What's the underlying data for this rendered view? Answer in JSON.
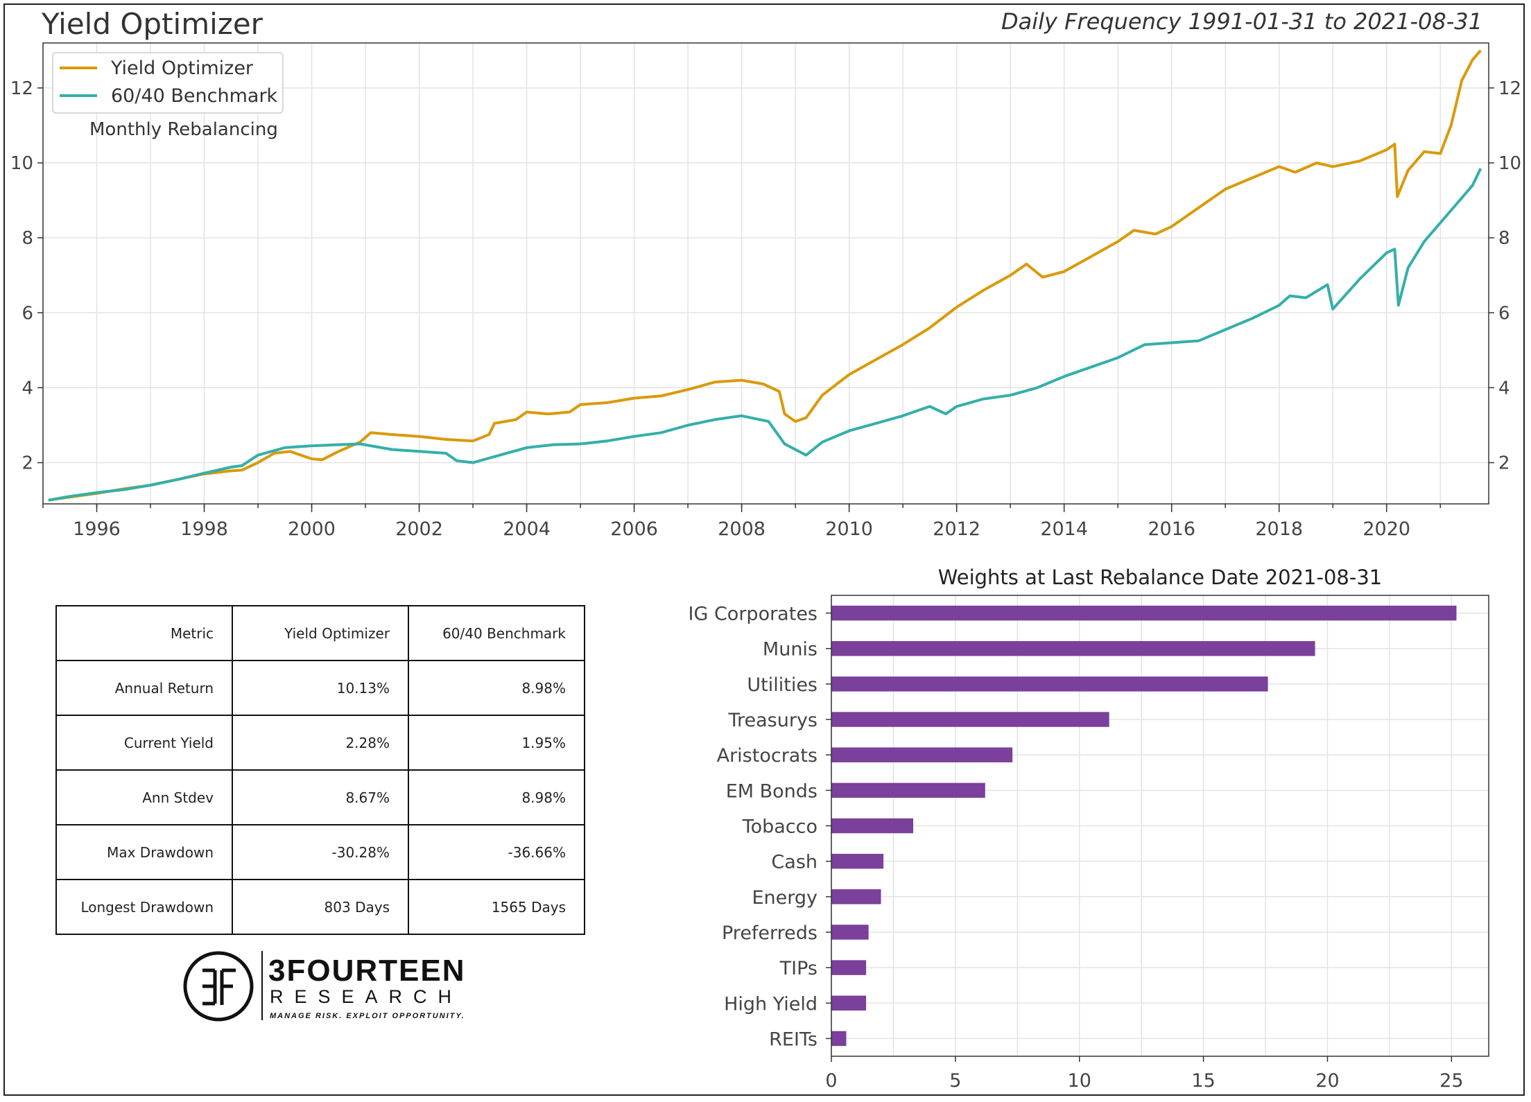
{
  "header": {
    "title": "Yield Optimizer",
    "subtitle": "Daily Frequency 1991-01-31 to 2021-08-31"
  },
  "colors": {
    "yield_optimizer": "#D99A0B",
    "benchmark": "#34AFAA",
    "bars": "#7B3F9C",
    "grid": "#e3e3e3"
  },
  "chart_data": [
    {
      "type": "line",
      "title": "",
      "legend": {
        "position": "top-left",
        "entries": [
          "Yield Optimizer",
          "60/40 Benchmark"
        ],
        "note": "Monthly Rebalancing"
      },
      "xlim": [
        1995.0,
        2021.9
      ],
      "ylim": [
        0.9,
        13.2
      ],
      "x_ticks": [
        1996,
        1998,
        2000,
        2002,
        2004,
        2006,
        2008,
        2010,
        2012,
        2014,
        2016,
        2018,
        2020
      ],
      "y_ticks": [
        2,
        4,
        6,
        8,
        10,
        12
      ],
      "grid": true,
      "series": [
        {
          "name": "Yield Optimizer",
          "points": [
            [
              1995.1,
              1.0
            ],
            [
              1995.5,
              1.08
            ],
            [
              1996.0,
              1.18
            ],
            [
              1996.5,
              1.3
            ],
            [
              1997.0,
              1.4
            ],
            [
              1997.5,
              1.55
            ],
            [
              1998.0,
              1.7
            ],
            [
              1998.5,
              1.78
            ],
            [
              1998.7,
              1.8
            ],
            [
              1999.0,
              2.0
            ],
            [
              1999.3,
              2.25
            ],
            [
              1999.6,
              2.3
            ],
            [
              2000.0,
              2.1
            ],
            [
              2000.2,
              2.08
            ],
            [
              2000.5,
              2.3
            ],
            [
              2000.9,
              2.55
            ],
            [
              2001.1,
              2.8
            ],
            [
              2001.5,
              2.75
            ],
            [
              2002.0,
              2.7
            ],
            [
              2002.5,
              2.62
            ],
            [
              2003.0,
              2.58
            ],
            [
              2003.3,
              2.75
            ],
            [
              2003.4,
              3.05
            ],
            [
              2003.8,
              3.15
            ],
            [
              2004.0,
              3.35
            ],
            [
              2004.4,
              3.3
            ],
            [
              2004.8,
              3.35
            ],
            [
              2005.0,
              3.55
            ],
            [
              2005.5,
              3.6
            ],
            [
              2006.0,
              3.72
            ],
            [
              2006.5,
              3.78
            ],
            [
              2007.0,
              3.95
            ],
            [
              2007.5,
              4.15
            ],
            [
              2008.0,
              4.2
            ],
            [
              2008.4,
              4.1
            ],
            [
              2008.7,
              3.9
            ],
            [
              2008.8,
              3.3
            ],
            [
              2009.0,
              3.1
            ],
            [
              2009.2,
              3.2
            ],
            [
              2009.5,
              3.8
            ],
            [
              2010.0,
              4.35
            ],
            [
              2010.5,
              4.75
            ],
            [
              2011.0,
              5.15
            ],
            [
              2011.5,
              5.6
            ],
            [
              2012.0,
              6.15
            ],
            [
              2012.5,
              6.6
            ],
            [
              2013.0,
              7.0
            ],
            [
              2013.3,
              7.3
            ],
            [
              2013.6,
              6.95
            ],
            [
              2014.0,
              7.1
            ],
            [
              2014.5,
              7.5
            ],
            [
              2015.0,
              7.9
            ],
            [
              2015.3,
              8.2
            ],
            [
              2015.7,
              8.1
            ],
            [
              2016.0,
              8.3
            ],
            [
              2016.5,
              8.8
            ],
            [
              2017.0,
              9.3
            ],
            [
              2017.5,
              9.6
            ],
            [
              2018.0,
              9.9
            ],
            [
              2018.3,
              9.75
            ],
            [
              2018.7,
              10.0
            ],
            [
              2019.0,
              9.9
            ],
            [
              2019.5,
              10.05
            ],
            [
              2020.0,
              10.35
            ],
            [
              2020.15,
              10.5
            ],
            [
              2020.2,
              9.1
            ],
            [
              2020.4,
              9.8
            ],
            [
              2020.7,
              10.3
            ],
            [
              2021.0,
              10.25
            ],
            [
              2021.2,
              11.0
            ],
            [
              2021.4,
              12.2
            ],
            [
              2021.6,
              12.75
            ],
            [
              2021.75,
              13.0
            ]
          ]
        },
        {
          "name": "60/40 Benchmark",
          "points": [
            [
              1995.1,
              1.0
            ],
            [
              1995.5,
              1.1
            ],
            [
              1996.0,
              1.2
            ],
            [
              1996.5,
              1.28
            ],
            [
              1997.0,
              1.4
            ],
            [
              1997.5,
              1.55
            ],
            [
              1998.0,
              1.72
            ],
            [
              1998.5,
              1.88
            ],
            [
              1998.7,
              1.92
            ],
            [
              1999.0,
              2.2
            ],
            [
              1999.5,
              2.4
            ],
            [
              2000.0,
              2.45
            ],
            [
              2000.5,
              2.48
            ],
            [
              2000.9,
              2.5
            ],
            [
              2001.5,
              2.35
            ],
            [
              2002.0,
              2.3
            ],
            [
              2002.5,
              2.25
            ],
            [
              2002.7,
              2.05
            ],
            [
              2003.0,
              2.0
            ],
            [
              2003.5,
              2.2
            ],
            [
              2004.0,
              2.4
            ],
            [
              2004.5,
              2.48
            ],
            [
              2005.0,
              2.5
            ],
            [
              2005.5,
              2.58
            ],
            [
              2006.0,
              2.7
            ],
            [
              2006.5,
              2.8
            ],
            [
              2007.0,
              3.0
            ],
            [
              2007.5,
              3.15
            ],
            [
              2008.0,
              3.25
            ],
            [
              2008.5,
              3.1
            ],
            [
              2008.8,
              2.5
            ],
            [
              2009.0,
              2.35
            ],
            [
              2009.2,
              2.2
            ],
            [
              2009.5,
              2.55
            ],
            [
              2010.0,
              2.85
            ],
            [
              2010.5,
              3.05
            ],
            [
              2011.0,
              3.25
            ],
            [
              2011.5,
              3.5
            ],
            [
              2011.8,
              3.3
            ],
            [
              2012.0,
              3.5
            ],
            [
              2012.5,
              3.7
            ],
            [
              2013.0,
              3.8
            ],
            [
              2013.5,
              4.0
            ],
            [
              2014.0,
              4.3
            ],
            [
              2014.5,
              4.55
            ],
            [
              2015.0,
              4.8
            ],
            [
              2015.5,
              5.15
            ],
            [
              2016.0,
              5.2
            ],
            [
              2016.5,
              5.25
            ],
            [
              2017.0,
              5.55
            ],
            [
              2017.5,
              5.85
            ],
            [
              2018.0,
              6.2
            ],
            [
              2018.2,
              6.45
            ],
            [
              2018.5,
              6.4
            ],
            [
              2018.9,
              6.75
            ],
            [
              2019.0,
              6.1
            ],
            [
              2019.5,
              6.9
            ],
            [
              2020.0,
              7.6
            ],
            [
              2020.15,
              7.7
            ],
            [
              2020.22,
              6.2
            ],
            [
              2020.4,
              7.2
            ],
            [
              2020.7,
              7.9
            ],
            [
              2021.0,
              8.4
            ],
            [
              2021.3,
              8.9
            ],
            [
              2021.6,
              9.4
            ],
            [
              2021.75,
              9.85
            ]
          ]
        }
      ]
    },
    {
      "type": "bar",
      "orientation": "horizontal",
      "title": "Weights at Last Rebalance Date 2021-08-31",
      "categories": [
        "IG Corporates",
        "Munis",
        "Utilities",
        "Treasurys",
        "Aristocrats",
        "EM Bonds",
        "Tobacco",
        "Cash",
        "Energy",
        "Preferreds",
        "TIPs",
        "High Yield",
        "REITs"
      ],
      "values": [
        25.2,
        19.5,
        17.6,
        11.2,
        7.3,
        6.2,
        3.3,
        2.1,
        2.0,
        1.5,
        1.4,
        1.4,
        0.6
      ],
      "xlim": [
        0,
        26.5
      ],
      "x_ticks": [
        0,
        5,
        10,
        15,
        20,
        25
      ],
      "grid": true
    }
  ],
  "metrics_table": {
    "headers": [
      "Metric",
      "Yield Optimizer",
      "60/40 Benchmark"
    ],
    "rows": [
      [
        "Annual Return",
        "10.13%",
        "8.98%"
      ],
      [
        "Current Yield",
        "2.28%",
        "1.95%"
      ],
      [
        "Ann Stdev",
        "8.67%",
        "8.98%"
      ],
      [
        "Max Drawdown",
        "-30.28%",
        "-36.66%"
      ],
      [
        "Longest Drawdown",
        "803 Days",
        "1565 Days"
      ]
    ]
  },
  "logo": {
    "name": "3FOURTEEN",
    "sub": "RESEARCH",
    "tagline": "MANAGE RISK. EXPLOIT OPPORTUNITY."
  }
}
